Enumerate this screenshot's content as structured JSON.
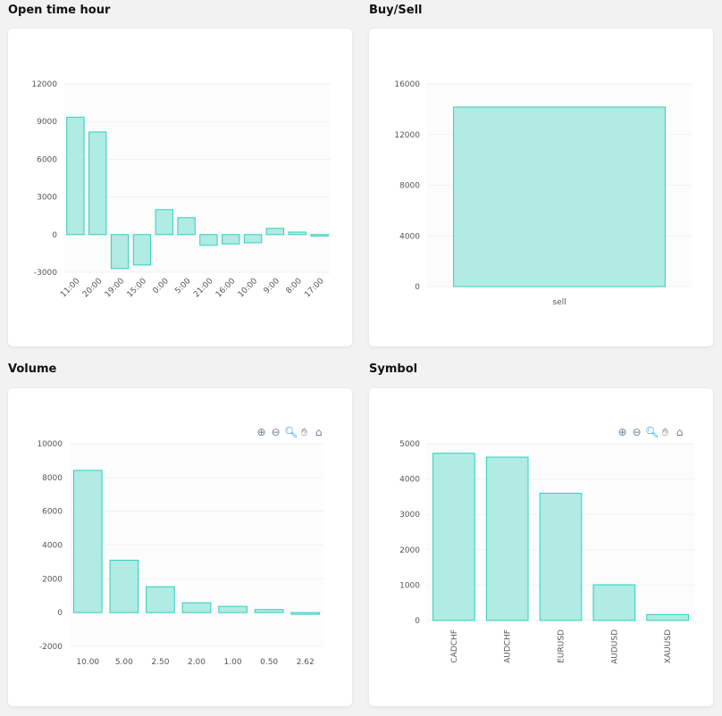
{
  "colors": {
    "bar_fill": "#b0ebe4",
    "bar_stroke": "#2cd1bb",
    "grid": "#f1f1f1",
    "plot_bg": "#fcfcfc"
  },
  "toolbar_icons": [
    "zoom-in-icon",
    "zoom-out-icon",
    "selection-zoom-icon",
    "pan-hand-icon",
    "home-reset-icon"
  ],
  "chart_data": [
    {
      "title": "Open time hour",
      "type": "bar",
      "categories": [
        "11:00",
        "20:00",
        "19:00",
        "15:00",
        "0:00",
        "5:00",
        "21:00",
        "16:00",
        "10:00",
        "9:00",
        "8:00",
        "17:00"
      ],
      "values": [
        9350,
        8170,
        -2700,
        -2420,
        1990,
        1350,
        -850,
        -740,
        -650,
        500,
        200,
        -80
      ],
      "ylim": [
        -3000,
        12000
      ],
      "yticks": [
        "-3000",
        "0",
        "3000",
        "6000",
        "9000",
        "12000"
      ],
      "x_label_rotation": "diagonal",
      "grid": true,
      "toolbar": false
    },
    {
      "title": "Buy/Sell",
      "type": "bar",
      "categories": [
        "sell"
      ],
      "values": [
        14170
      ],
      "ylim": [
        0,
        16000
      ],
      "yticks": [
        "0",
        "4000",
        "8000",
        "12000",
        "16000"
      ],
      "x_label_rotation": "none",
      "grid": true,
      "toolbar": false
    },
    {
      "title": "Volume",
      "type": "bar",
      "categories": [
        "10.00",
        "5.00",
        "2.50",
        "2.00",
        "1.00",
        "0.50",
        "2.62"
      ],
      "values": [
        8420,
        3100,
        1530,
        580,
        370,
        180,
        -100
      ],
      "ylim": [
        -2000,
        10000
      ],
      "yticks": [
        "-2000",
        "0",
        "2000",
        "4000",
        "6000",
        "8000",
        "10000"
      ],
      "x_label_rotation": "none",
      "grid": true,
      "toolbar": true
    },
    {
      "title": "Symbol",
      "type": "bar",
      "categories": [
        "CADCHF",
        "AUDCHF",
        "EURUSD",
        "AUDUSD",
        "XAUUSD"
      ],
      "values": [
        4730,
        4620,
        3600,
        1010,
        170
      ],
      "ylim": [
        0,
        5000
      ],
      "yticks": [
        "0",
        "1000",
        "2000",
        "3000",
        "4000",
        "5000"
      ],
      "x_label_rotation": "vertical",
      "grid": true,
      "toolbar": true
    }
  ]
}
